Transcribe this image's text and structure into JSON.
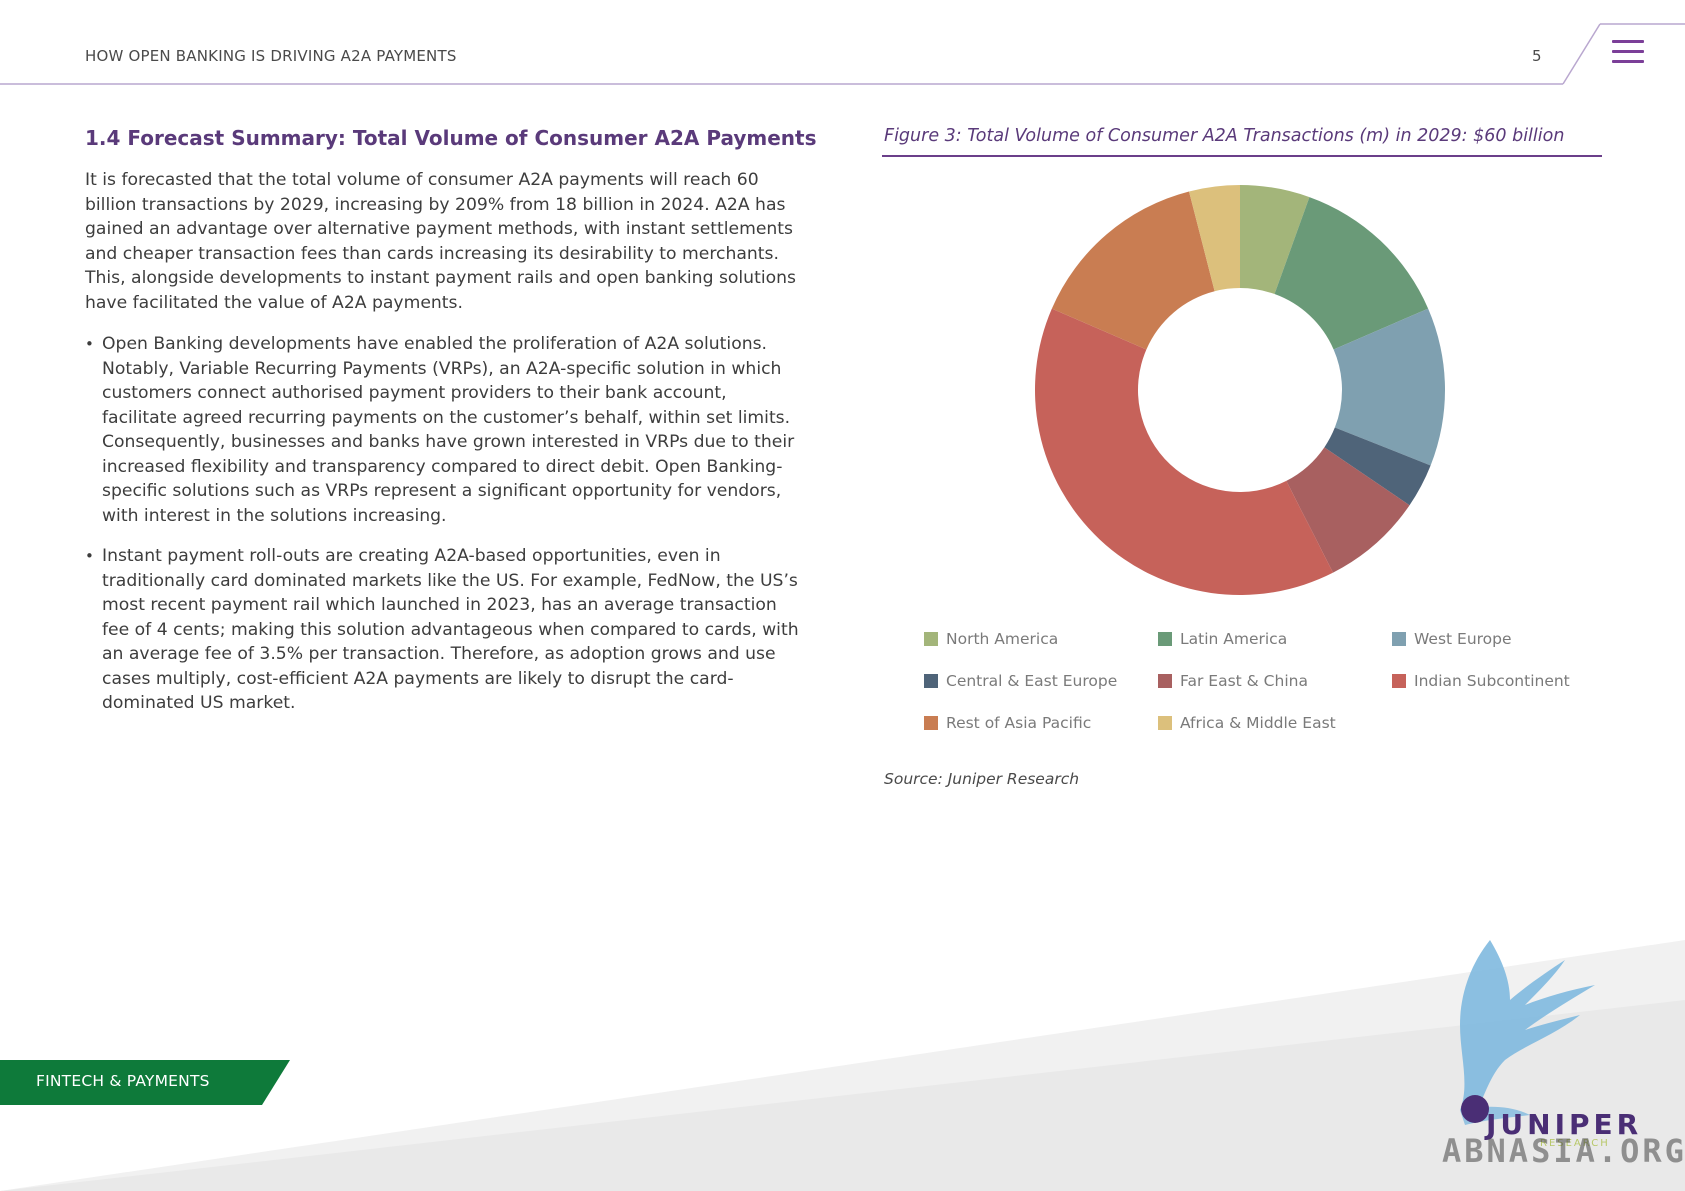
{
  "header": {
    "title": "HOW OPEN BANKING IS DRIVING A2A PAYMENTS",
    "page_number": "5",
    "menu_icon": "hamburger-menu-icon",
    "accent_color": "#7b3f98"
  },
  "section": {
    "title": "1.4 Forecast Summary: Total Volume of Consumer A2A Payments",
    "paragraph": "It is forecasted that the total volume of consumer A2A payments will reach 60 billion transactions by 2029, increasing by 209% from 18 billion in 2024. A2A has gained an advantage over alternative payment methods, with instant settlements and cheaper transaction fees than cards increasing its desirability to merchants. This, alongside developments to instant payment rails and open banking solutions have facilitated the value of A2A payments.",
    "bullets": [
      "Open Banking developments have enabled the proliferation of A2A solutions. Notably, Variable Recurring Payments (VRPs), an A2A-specific solution in which customers connect authorised payment providers to their bank account, facilitate agreed recurring payments on the customer’s behalf, within set limits. Consequently, businesses and banks have grown interested in VRPs due to their increased flexibility and transparency compared to direct debit. Open Banking-specific solutions such as VRPs represent a significant opportunity for vendors, with interest in the solutions increasing.",
      "Instant payment roll-outs are creating A2A-based opportunities, even in traditionally card dominated markets like the US. For example, FedNow, the US’s most recent payment rail which launched in 2023, has an average transaction fee of 4 cents; making  this solution advantageous when compared to cards, with an average fee of 3.5% per transaction. Therefore, as adoption grows and use cases multiply, cost-efficient A2A payments are likely to disrupt the card-dominated US market."
    ]
  },
  "figure": {
    "caption": "Figure 3: Total Volume of Consumer A2A Transactions (m) in 2029: $60 billion",
    "source": "Source: Juniper Research"
  },
  "chart_data": {
    "type": "pie",
    "donut": true,
    "title": "Figure 3: Total Volume of Consumer A2A Transactions (m) in 2029: $60 billion",
    "legend_position": "bottom",
    "categories": [
      "North America",
      "Latin America",
      "West Europe",
      "Central & East Europe",
      "Far East & China",
      "Indian Subcontinent",
      "Rest of Asia Pacific",
      "Africa & Middle East"
    ],
    "values": [
      5.5,
      13.0,
      12.5,
      3.5,
      8.0,
      39.0,
      14.5,
      4.0
    ],
    "colors": [
      "#a3b57a",
      "#6a9a78",
      "#7fa0b0",
      "#4f6479",
      "#a86060",
      "#c6625a",
      "#c97d52",
      "#dcc07c"
    ]
  },
  "footer": {
    "category_label": "FINTECH & PAYMENTS",
    "category_color": "#0e7a3a",
    "brand": "JUNIPER",
    "brand_sub": "RESEARCH",
    "watermark": "ABNASIA.ORG",
    "logo_icon": "phoenix-logo-icon"
  }
}
